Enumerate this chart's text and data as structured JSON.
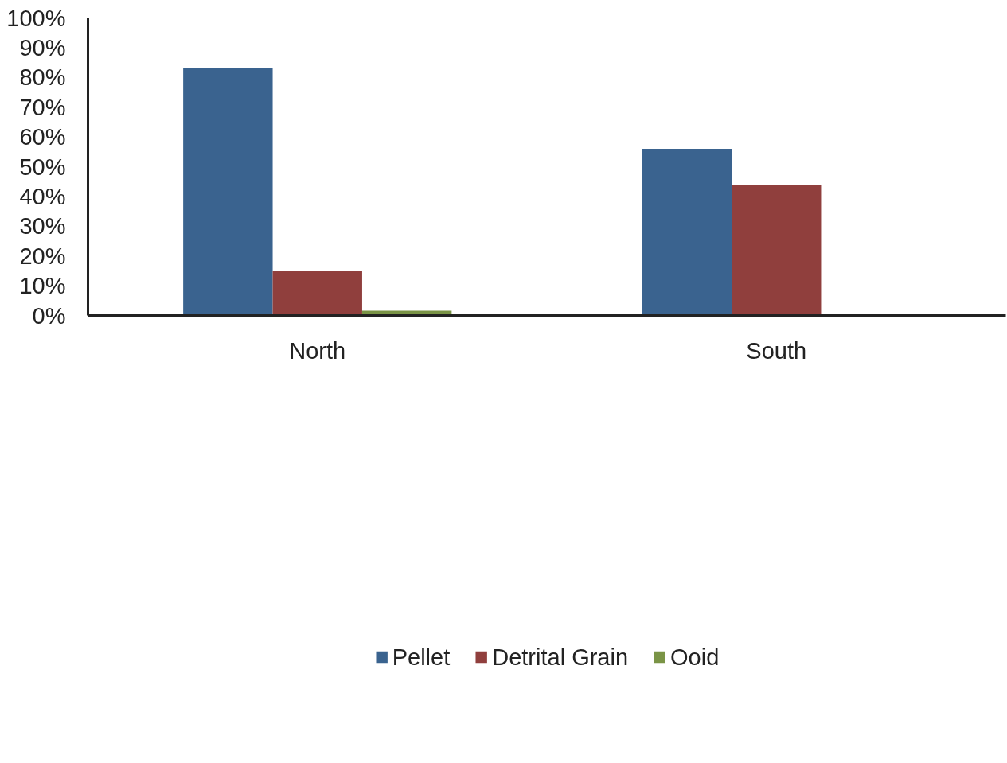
{
  "chart_data": {
    "type": "bar",
    "categories": [
      "North",
      "South"
    ],
    "series": [
      {
        "name": "Pellet",
        "color": "#3a638f",
        "values": [
          83,
          56
        ]
      },
      {
        "name": "Detrital Grain",
        "color": "#903f3d",
        "values": [
          15,
          44
        ]
      },
      {
        "name": "Ooid",
        "color": "#7a9446",
        "values": [
          1.6,
          0
        ]
      }
    ],
    "ylim": [
      0,
      100
    ],
    "yticks": [
      {
        "value": 0,
        "label": "0%"
      },
      {
        "value": 10,
        "label": "10%"
      },
      {
        "value": 20,
        "label": "20%"
      },
      {
        "value": 30,
        "label": "30%"
      },
      {
        "value": 40,
        "label": "40%"
      },
      {
        "value": 50,
        "label": "50%"
      },
      {
        "value": 60,
        "label": "60%"
      },
      {
        "value": 70,
        "label": "70%"
      },
      {
        "value": 80,
        "label": "80%"
      },
      {
        "value": 90,
        "label": "90%"
      },
      {
        "value": 100,
        "label": "100%"
      }
    ],
    "grid": false,
    "legend": "bottom"
  }
}
